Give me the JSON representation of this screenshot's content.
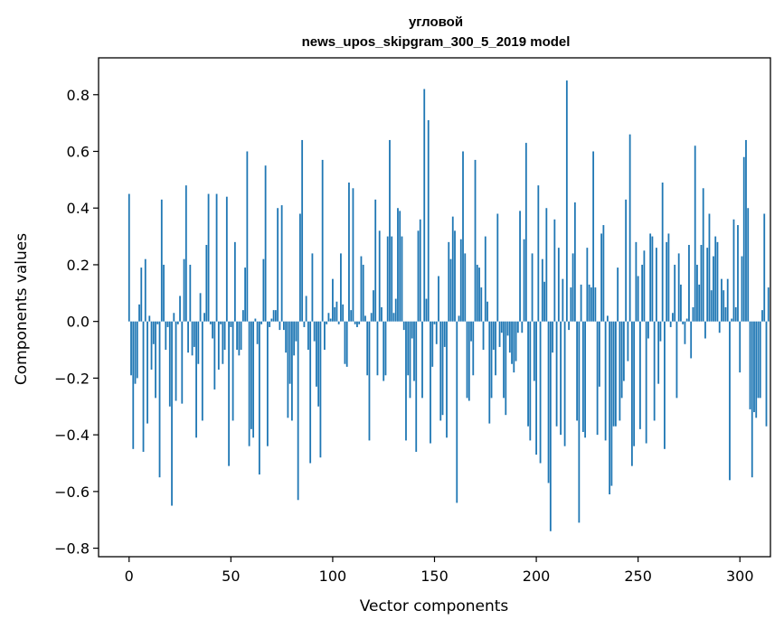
{
  "chart_data": {
    "type": "bar",
    "title_line1": "угловой",
    "title_line2": "news_upos_skipgram_300_5_2019 model",
    "xlabel": "Vector components",
    "ylabel": "Components values",
    "xlim": [
      -15,
      315
    ],
    "ylim": [
      -0.83,
      0.93
    ],
    "x_ticks": [
      0,
      50,
      100,
      150,
      200,
      250,
      300
    ],
    "x_tick_labels": [
      "0",
      "50",
      "100",
      "150",
      "200",
      "250",
      "300"
    ],
    "y_ticks": [
      0.8,
      0.6,
      0.4,
      0.2,
      0.0,
      -0.2,
      -0.4,
      -0.6,
      -0.8
    ],
    "y_tick_labels": [
      "0.8",
      "0.6",
      "0.4",
      "0.2",
      "0.0",
      "−0.2",
      "−0.4",
      "−0.6",
      "−0.8"
    ],
    "bar_color": "#1f77b4",
    "values": [
      0.45,
      -0.19,
      -0.45,
      -0.22,
      -0.2,
      0.06,
      0.19,
      -0.46,
      0.22,
      -0.36,
      0.02,
      -0.17,
      -0.08,
      -0.27,
      -0.01,
      -0.55,
      0.43,
      0.2,
      -0.1,
      -0.02,
      -0.3,
      -0.65,
      0.03,
      -0.28,
      -0.01,
      0.09,
      -0.29,
      0.22,
      0.48,
      -0.11,
      0.2,
      -0.12,
      -0.09,
      -0.41,
      -0.15,
      0.1,
      -0.35,
      0.03,
      0.27,
      0.45,
      -0.01,
      -0.06,
      -0.24,
      0.45,
      -0.17,
      -0.01,
      -0.15,
      -0.1,
      0.44,
      -0.51,
      -0.02,
      -0.35,
      0.28,
      -0.1,
      -0.12,
      -0.1,
      0.04,
      0.19,
      0.6,
      -0.44,
      -0.38,
      -0.41,
      0.01,
      -0.08,
      -0.54,
      -0.01,
      0.22,
      0.55,
      -0.44,
      -0.02,
      0.01,
      0.04,
      0.04,
      0.4,
      -0.03,
      0.41,
      -0.03,
      -0.11,
      -0.34,
      -0.22,
      -0.35,
      -0.12,
      -0.07,
      -0.63,
      0.38,
      0.64,
      -0.02,
      0.09,
      -0.1,
      -0.5,
      0.24,
      -0.07,
      -0.23,
      -0.3,
      -0.48,
      0.57,
      -0.1,
      -0.01,
      0.03,
      0.01,
      0.15,
      0.05,
      0.07,
      -0.01,
      0.24,
      0.06,
      -0.15,
      -0.16,
      0.49,
      0.04,
      0.47,
      -0.01,
      -0.02,
      -0.01,
      0.23,
      0.2,
      0.02,
      -0.19,
      -0.42,
      0.03,
      0.11,
      0.43,
      -0.19,
      0.32,
      0.05,
      -0.21,
      -0.19,
      0.3,
      0.64,
      0.3,
      0.03,
      0.08,
      0.4,
      0.39,
      0.3,
      -0.03,
      -0.42,
      -0.19,
      -0.27,
      -0.06,
      -0.21,
      -0.46,
      0.32,
      0.36,
      -0.27,
      0.82,
      0.08,
      0.71,
      -0.43,
      -0.16,
      -0.01,
      -0.08,
      0.16,
      -0.35,
      -0.33,
      -0.09,
      -0.41,
      0.28,
      0.22,
      0.37,
      0.32,
      -0.64,
      0.02,
      0.29,
      0.6,
      0.24,
      -0.27,
      -0.28,
      -0.07,
      -0.19,
      0.57,
      0.2,
      0.19,
      0.12,
      -0.1,
      0.3,
      0.07,
      -0.36,
      -0.27,
      -0.1,
      -0.19,
      0.38,
      -0.09,
      -0.04,
      -0.27,
      -0.33,
      -0.05,
      -0.11,
      -0.15,
      -0.18,
      -0.14,
      -0.04,
      0.39,
      -0.04,
      0.29,
      0.63,
      -0.37,
      -0.42,
      0.24,
      -0.21,
      -0.47,
      0.48,
      -0.5,
      0.22,
      0.14,
      0.4,
      -0.57,
      -0.74,
      -0.11,
      0.36,
      -0.37,
      0.26,
      -0.4,
      0.15,
      -0.44,
      0.85,
      -0.03,
      0.12,
      0.24,
      0.42,
      -0.35,
      -0.71,
      0.13,
      -0.39,
      -0.41,
      0.26,
      0.13,
      0.12,
      0.6,
      0.12,
      -0.4,
      -0.23,
      0.31,
      0.34,
      -0.42,
      0.02,
      -0.61,
      -0.58,
      -0.37,
      -0.37,
      0.19,
      -0.35,
      -0.27,
      -0.21,
      0.43,
      -0.14,
      0.66,
      -0.51,
      -0.44,
      0.28,
      0.16,
      -0.38,
      0.2,
      0.25,
      -0.43,
      -0.06,
      0.31,
      0.3,
      -0.35,
      0.26,
      -0.22,
      -0.07,
      0.49,
      -0.45,
      0.28,
      0.31,
      -0.02,
      0.03,
      0.2,
      -0.27,
      0.24,
      0.13,
      -0.01,
      -0.08,
      0.01,
      0.27,
      -0.13,
      0.05,
      0.62,
      0.2,
      0.13,
      0.27,
      0.47,
      -0.06,
      0.26,
      0.38,
      0.11,
      0.23,
      0.3,
      0.28,
      -0.04,
      0.15,
      0.11,
      0.05,
      0.15,
      -0.56,
      0.01,
      0.36,
      0.05,
      0.34,
      -0.18,
      0.23,
      0.58,
      0.64,
      0.4,
      -0.31,
      -0.55,
      -0.32,
      -0.34,
      -0.27,
      -0.27,
      0.04,
      0.38,
      -0.37,
      0.12
    ]
  }
}
